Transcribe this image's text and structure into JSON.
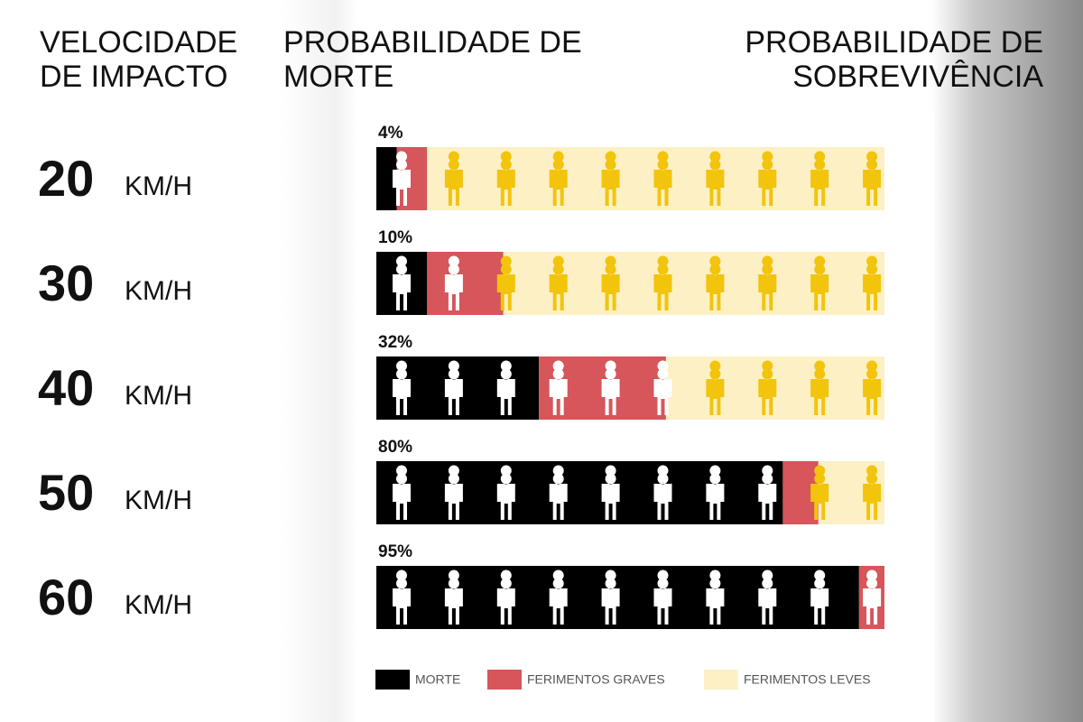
{
  "chart_data": {
    "type": "stacked-bar",
    "headers": [
      "VELOCIDADE DE IMPACTO",
      "PROBABILIDADE DE MORTE",
      "PROBABILIDADE DE SOBREVIVÊNCIA"
    ],
    "categories": [
      "20",
      "30",
      "40",
      "50",
      "60"
    ],
    "unit": "KM/H",
    "xlim": [
      0,
      100
    ],
    "series": [
      {
        "name": "MORTE",
        "color": "#000000",
        "values": [
          4,
          10,
          32,
          80,
          95
        ],
        "value_labels": [
          "4%",
          "10%",
          "32%",
          "80%",
          "95%"
        ]
      },
      {
        "name": "FERIMENTOS GRAVES",
        "color": "#d6565b",
        "values": [
          6,
          15,
          25,
          7,
          5
        ]
      },
      {
        "name": "FERIMENTOS LEVES",
        "color": "#fcf0c4",
        "values": [
          90,
          75,
          43,
          13,
          0
        ]
      }
    ]
  }
}
